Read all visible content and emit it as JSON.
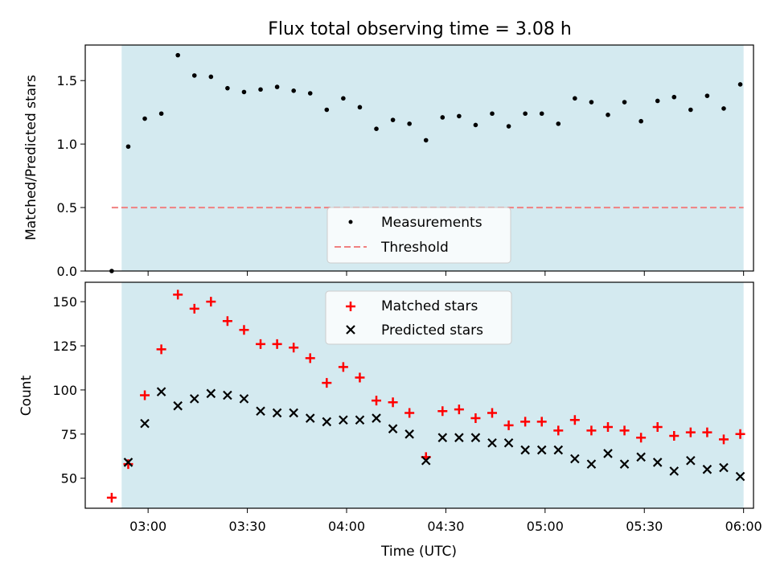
{
  "chart_data": [
    {
      "type": "scatter",
      "title": "Flux total observing time = 3.08 h",
      "xlabel": "",
      "ylabel": "Matched/Predicted stars",
      "ylim": [
        0,
        1.78
      ],
      "yticks": [
        0.0,
        0.5,
        1.0,
        1.5
      ],
      "ytick_labels": [
        "0.0",
        "0.5",
        "1.0",
        "1.5"
      ],
      "shaded_interval": [
        "02:52",
        "06:00"
      ],
      "shade_color": "#d4eaf0",
      "legend_position": "lower-center",
      "series": [
        {
          "name": "Measurements",
          "marker": "dot",
          "color": "#000000",
          "x": [
            "02:49",
            "02:54",
            "02:59",
            "03:04",
            "03:09",
            "03:14",
            "03:19",
            "03:24",
            "03:29",
            "03:34",
            "03:39",
            "03:44",
            "03:49",
            "03:54",
            "03:59",
            "04:04",
            "04:09",
            "04:14",
            "04:19",
            "04:24",
            "04:29",
            "04:34",
            "04:39",
            "04:44",
            "04:49",
            "04:54",
            "04:59",
            "05:04",
            "05:09",
            "05:14",
            "05:19",
            "05:24",
            "05:29",
            "05:34",
            "05:39",
            "05:44",
            "05:49",
            "05:54",
            "05:59"
          ],
          "y": [
            0.0,
            0.98,
            1.2,
            1.24,
            1.7,
            1.54,
            1.53,
            1.44,
            1.41,
            1.43,
            1.45,
            1.42,
            1.4,
            1.27,
            1.36,
            1.29,
            1.12,
            1.19,
            1.16,
            1.03,
            1.21,
            1.22,
            1.15,
            1.24,
            1.14,
            1.24,
            1.24,
            1.16,
            1.36,
            1.33,
            1.23,
            1.33,
            1.18,
            1.34,
            1.37,
            1.27,
            1.38,
            1.28,
            1.47
          ]
        },
        {
          "name": "Threshold",
          "style": "dashed",
          "color": "#f08080",
          "x": [
            "02:49",
            "06:00"
          ],
          "y": [
            0.5,
            0.5
          ]
        }
      ]
    },
    {
      "type": "scatter",
      "title": "",
      "xlabel": "Time (UTC)",
      "ylabel": "Count",
      "ylim": [
        33,
        161
      ],
      "yticks": [
        50,
        75,
        100,
        125,
        150
      ],
      "ytick_labels": [
        "50",
        "75",
        "100",
        "125",
        "150"
      ],
      "xticks": [
        "03:00",
        "03:30",
        "04:00",
        "04:30",
        "05:00",
        "05:30",
        "06:00"
      ],
      "shaded_interval": [
        "02:52",
        "06:00"
      ],
      "shade_color": "#d4eaf0",
      "legend_position": "top-center",
      "series": [
        {
          "name": "Matched stars",
          "marker": "plus",
          "color": "#ff0000",
          "x": [
            "02:49",
            "02:54",
            "02:59",
            "03:04",
            "03:09",
            "03:14",
            "03:19",
            "03:24",
            "03:29",
            "03:34",
            "03:39",
            "03:44",
            "03:49",
            "03:54",
            "03:59",
            "04:04",
            "04:09",
            "04:14",
            "04:19",
            "04:24",
            "04:29",
            "04:34",
            "04:39",
            "04:44",
            "04:49",
            "04:54",
            "04:59",
            "05:04",
            "05:09",
            "05:14",
            "05:19",
            "05:24",
            "05:29",
            "05:34",
            "05:39",
            "05:44",
            "05:49",
            "05:54",
            "05:59"
          ],
          "y": [
            39,
            58,
            97,
            123,
            154,
            146,
            150,
            139,
            134,
            126,
            126,
            124,
            118,
            104,
            113,
            107,
            94,
            93,
            87,
            62,
            88,
            89,
            84,
            87,
            80,
            82,
            82,
            77,
            83,
            77,
            79,
            77,
            73,
            79,
            74,
            76,
            76,
            72,
            75
          ]
        },
        {
          "name": "Predicted stars",
          "marker": "x",
          "color": "#000000",
          "x": [
            "02:54",
            "02:59",
            "03:04",
            "03:09",
            "03:14",
            "03:19",
            "03:24",
            "03:29",
            "03:34",
            "03:39",
            "03:44",
            "03:49",
            "03:54",
            "03:59",
            "04:04",
            "04:09",
            "04:14",
            "04:19",
            "04:24",
            "04:29",
            "04:34",
            "04:39",
            "04:44",
            "04:49",
            "04:54",
            "04:59",
            "05:04",
            "05:09",
            "05:14",
            "05:19",
            "05:24",
            "05:29",
            "05:34",
            "05:39",
            "05:44",
            "05:49",
            "05:54",
            "05:59"
          ],
          "y": [
            59,
            81,
            99,
            91,
            95,
            98,
            97,
            95,
            88,
            87,
            87,
            84,
            82,
            83,
            83,
            84,
            78,
            75,
            60,
            73,
            73,
            73,
            70,
            70,
            66,
            66,
            66,
            61,
            58,
            64,
            58,
            62,
            59,
            54,
            60,
            55,
            56,
            51
          ]
        }
      ]
    }
  ]
}
